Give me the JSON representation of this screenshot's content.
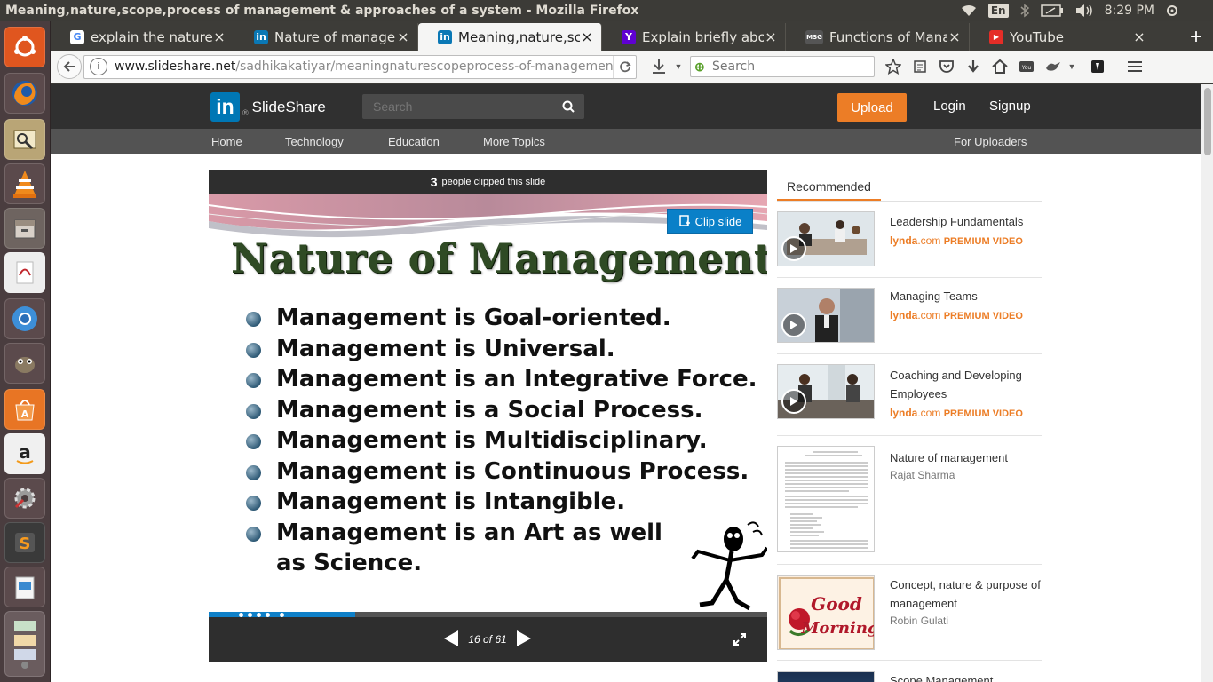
{
  "window_title": "Meaning,nature,scope,process of management & approaches of a system - Mozilla Firefox",
  "system_tray": {
    "keyboard_layout": "En",
    "clock": "8:29 PM"
  },
  "launcher": [
    "ubuntu-dash",
    "firefox",
    "image-viewer",
    "vlc",
    "files",
    "document-viewer",
    "chromium",
    "gimp",
    "software-center",
    "amazon",
    "system-settings",
    "sublime-text",
    "libreoffice-impress",
    "stacked-apps"
  ],
  "tabs": [
    {
      "label": "explain the nature a…",
      "favicon": "G",
      "favicon_color": "#ffffff",
      "active": false
    },
    {
      "label": "Nature of managem…",
      "favicon": "in",
      "favicon_color": "#0a78b5",
      "active": false
    },
    {
      "label": "Meaning,nature,sco…",
      "favicon": "in",
      "favicon_color": "#0a78b5",
      "active": true
    },
    {
      "label": "Explain briefly abou…",
      "favicon": "Y",
      "favicon_color": "#5f01d1",
      "active": false
    },
    {
      "label": "Functions of Manag…",
      "favicon": "MSG",
      "favicon_color": "#666666",
      "active": false
    },
    {
      "label": "YouTube",
      "favicon": "▶",
      "favicon_color": "#e52d27",
      "active": false
    }
  ],
  "nav": {
    "url_host": "www.slideshare.net",
    "url_path": "/sadhikakatiyar/meaningnaturescopeprocess-of-management-ap",
    "search_placeholder": "Search"
  },
  "slideshare": {
    "brand": "SlideShare",
    "search_placeholder": "Search",
    "upload": "Upload",
    "login": "Login",
    "signup": "Signup",
    "subnav": [
      "Home",
      "Technology",
      "Education",
      "More Topics"
    ],
    "for_uploaders": "For Uploaders"
  },
  "player": {
    "clip_count": "3",
    "clip_text": "people clipped this slide",
    "clip_button": "Clip slide",
    "slide_title": "Nature of Management",
    "bullets": [
      "Management is Goal-oriented.",
      "Management is Universal.",
      "Management is an Integrative Force.",
      "Management is a Social Process.",
      "Management is Multidisciplinary.",
      "Management is Continuous Process.",
      "Management is Intangible.",
      "Management is an Art as well as Science."
    ],
    "page_indicator": "16 of 61",
    "progress_fraction": 0.262
  },
  "recommended": {
    "tab_label": "Recommended",
    "items": [
      {
        "title": "Leadership Fundamentals",
        "badge_lynda": "lynda",
        "badge_com": ".com",
        "badge_premium": "PREMIUM VIDEO"
      },
      {
        "title": "Managing Teams",
        "badge_lynda": "lynda",
        "badge_com": ".com",
        "badge_premium": "PREMIUM VIDEO"
      },
      {
        "title": "Coaching and Developing Employees",
        "badge_lynda": "lynda",
        "badge_com": ".com",
        "badge_premium": "PREMIUM VIDEO"
      },
      {
        "title": "Nature of management",
        "author": "Rajat Sharma"
      },
      {
        "title": "Concept, nature & purpose of management",
        "author": "Robin Gulati"
      },
      {
        "title": "Scope Management"
      }
    ]
  },
  "colors": {
    "accent_orange": "#ec7d26",
    "linkedin_blue": "#0077b5",
    "clip_blue": "#0a80c8",
    "header_dark": "#303030",
    "subnav_gray": "#535353"
  }
}
